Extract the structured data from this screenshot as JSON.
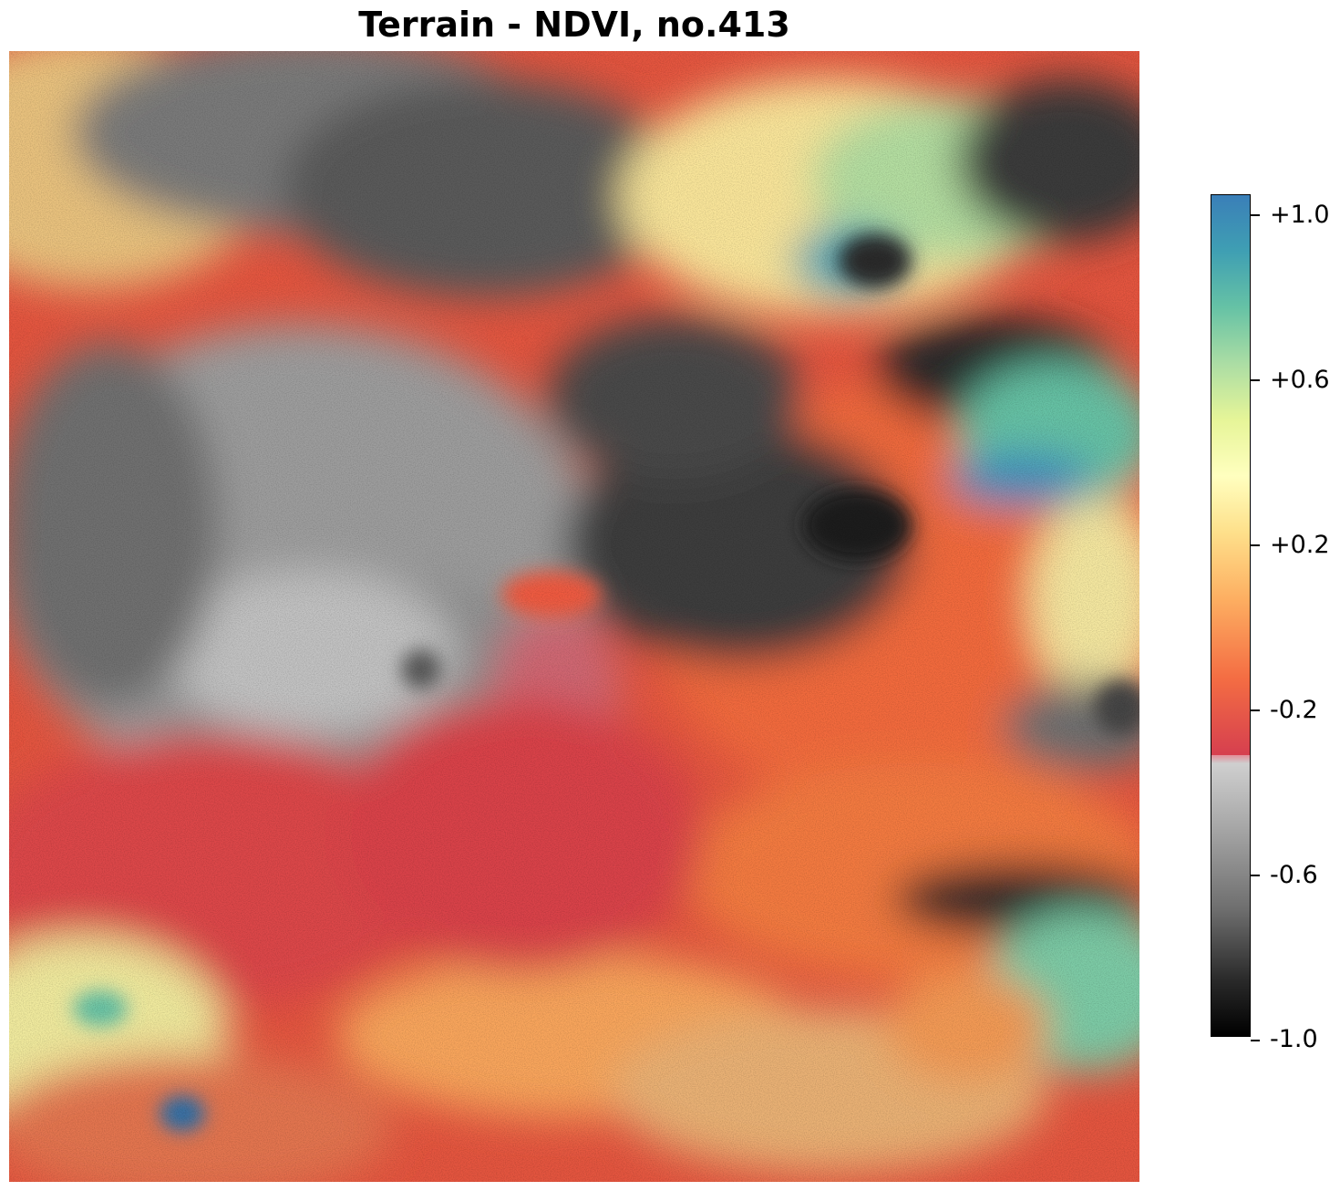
{
  "title": "Terrain - NDVI, no.413",
  "colorbar": {
    "range": [
      -1.0,
      1.0
    ],
    "ticks": [
      "+1.0",
      "+0.6",
      "+0.2",
      "-0.2",
      "-0.6",
      "-1.0"
    ],
    "colors": {
      "high": "#2c7bb6",
      "mid_high": "#66c2a5",
      "mid": "#ffffbf",
      "mid_low": "#f46d43",
      "low_red": "#d53e4f",
      "gray_light": "#cfcfcf",
      "gray_dark": "#000000"
    }
  }
}
